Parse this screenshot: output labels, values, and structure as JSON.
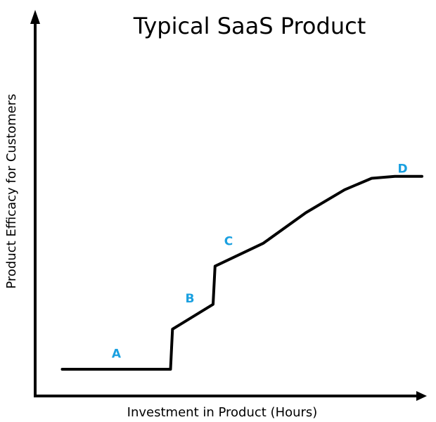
{
  "chart_data": {
    "type": "line",
    "title": "Typical SaaS Product",
    "xlabel": "Investment in Product (Hours)",
    "ylabel": "Product Efficacy for Customers",
    "xlim": [
      0,
      100
    ],
    "ylim": [
      0,
      100
    ],
    "grid": false,
    "legend": "none",
    "series": [
      {
        "x": [
          7,
          35,
          35.5,
          46,
          46.5,
          59,
          70,
          80,
          87,
          93,
          100
        ],
        "y": [
          7,
          7,
          17.5,
          24,
          34,
          40,
          48,
          54,
          57,
          57.5,
          57.5
        ]
      }
    ],
    "annotations": [
      {
        "label": "A",
        "x": 21,
        "y": 10
      },
      {
        "label": "B",
        "x": 40,
        "y": 24.5
      },
      {
        "label": "C",
        "x": 50,
        "y": 39.5
      },
      {
        "label": "D",
        "x": 95,
        "y": 58.5
      }
    ],
    "colors": {
      "line": "#000000",
      "axes": "#000000",
      "annotation": "#1aa0e0",
      "title": "#000000"
    }
  }
}
